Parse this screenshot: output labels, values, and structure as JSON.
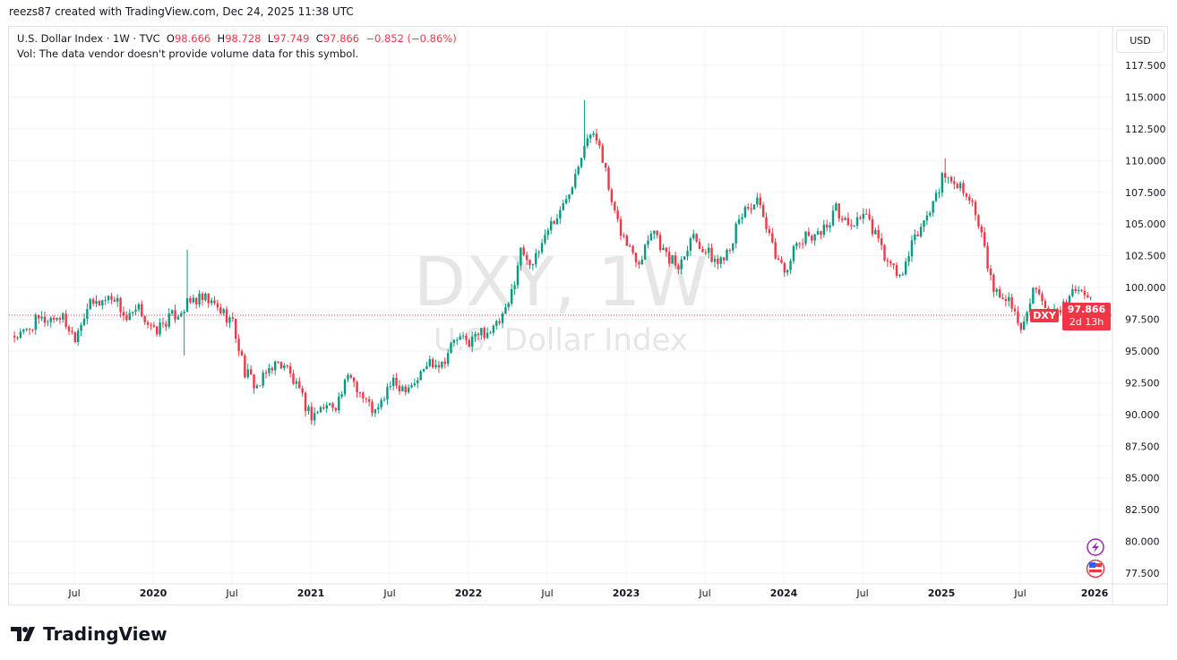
{
  "credit": "reezs87 created with TradingView.com, Dec 24, 2025 11:38 UTC",
  "legend": {
    "symbol": "U.S. Dollar Index · 1W · TVC",
    "o_label": "O",
    "o": "98.666",
    "h_label": "H",
    "h": "98.728",
    "l_label": "L",
    "l": "97.749",
    "c_label": "C",
    "c": "97.866",
    "change": "−0.852 (−0.86%)",
    "vol": "Vol: The data vendor doesn't provide volume data for this symbol."
  },
  "currency_button": "USD",
  "watermark": {
    "ticker": "DXY, 1W",
    "name": "U.S. Dollar Index"
  },
  "price_tag": {
    "symbol": "DXY",
    "price": "97.866",
    "countdown": "2d 13h"
  },
  "logo_text": "TradingView",
  "colors": {
    "up": "#089981",
    "down": "#f23645",
    "grid": "#f0f3fa"
  },
  "chart_data": {
    "type": "candlestick",
    "title": "U.S. Dollar Index · 1W · TVC",
    "interval": "weekly",
    "ylim": [
      76.5,
      119
    ],
    "y_ticks": [
      "117.500",
      "115.000",
      "112.500",
      "110.000",
      "107.500",
      "105.000",
      "102.500",
      "100.000",
      "97.500",
      "95.000",
      "92.500",
      "90.000",
      "87.500",
      "85.000",
      "82.500",
      "80.000",
      "77.500"
    ],
    "x_ticks": [
      {
        "label": "Jul",
        "t": 2019.5
      },
      {
        "label": "2020",
        "t": 2020
      },
      {
        "label": "Jul",
        "t": 2020.5
      },
      {
        "label": "2021",
        "t": 2021
      },
      {
        "label": "Jul",
        "t": 2021.5
      },
      {
        "label": "2022",
        "t": 2022
      },
      {
        "label": "Jul",
        "t": 2022.5
      },
      {
        "label": "2023",
        "t": 2023
      },
      {
        "label": "Jul",
        "t": 2023.5
      },
      {
        "label": "2024",
        "t": 2024
      },
      {
        "label": "Jul",
        "t": 2024.5
      },
      {
        "label": "2025",
        "t": 2025
      },
      {
        "label": "Jul",
        "t": 2025.5
      },
      {
        "label": "2026",
        "t": 2026
      }
    ],
    "start_month": "2019-02",
    "monthly_closes": [
      96.2,
      97.3,
      97.5,
      97.8,
      96.1,
      98.5,
      98.9,
      99.4,
      97.4,
      98.3,
      96.4,
      97.4,
      98.1,
      99.0,
      99.0,
      98.3,
      97.4,
      93.3,
      92.1,
      93.9,
      94.0,
      91.9,
      89.9,
      90.6,
      90.9,
      93.2,
      91.3,
      90.0,
      92.4,
      92.2,
      92.6,
      94.2,
      94.1,
      96.0,
      95.7,
      96.5,
      96.7,
      98.3,
      103.0,
      101.8,
      104.7,
      105.9,
      108.7,
      112.1,
      111.5,
      105.9,
      103.5,
      102.1,
      104.9,
      102.5,
      101.7,
      104.3,
      102.9,
      101.9,
      103.6,
      106.2,
      106.7,
      103.5,
      101.3,
      103.3,
      104.2,
      104.5,
      106.2,
      104.7,
      105.9,
      104.1,
      101.7,
      100.8,
      104.0,
      105.7,
      108.5,
      108.4,
      107.6,
      104.2,
      99.5,
      99.3,
      96.9,
      99.9,
      97.8,
      97.8,
      99.8,
      99.5,
      97.866
    ],
    "extremes": [
      {
        "t": 2020.21,
        "high": 102.99
      },
      {
        "t": 2020.19,
        "low": 94.65
      },
      {
        "t": 2022.74,
        "high": 114.78
      },
      {
        "t": 2025.03,
        "high": 110.18
      },
      {
        "t": 2021.01,
        "low": 89.2
      },
      {
        "t": 2025.5,
        "low": 96.38
      }
    ],
    "last": {
      "open": 98.666,
      "high": 98.728,
      "low": 97.749,
      "close": 97.866
    }
  }
}
